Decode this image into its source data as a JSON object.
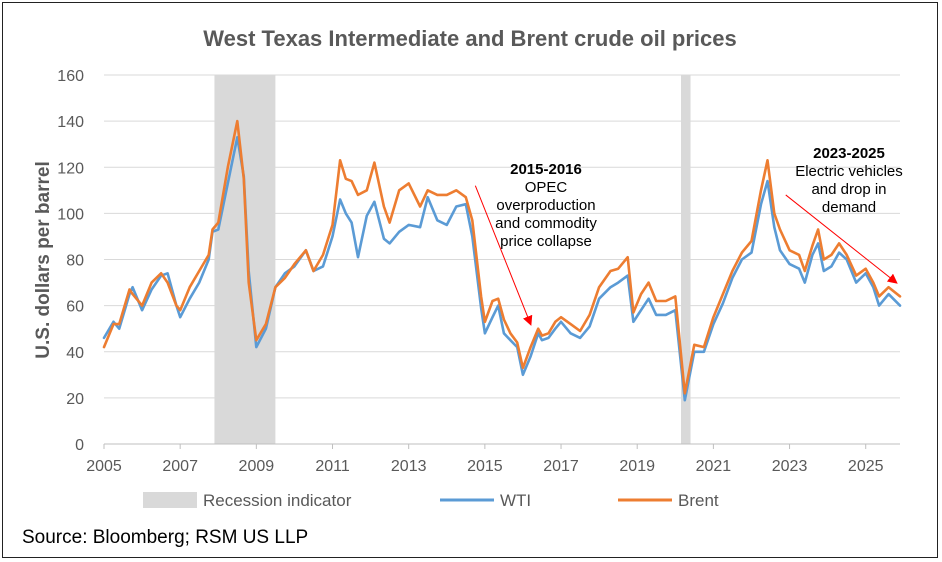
{
  "chart_data": {
    "type": "line",
    "title": "West Texas Intermediate and Brent crude oil prices",
    "ylabel": "U.S. dollars per barrel",
    "xlabel": "",
    "ylim": [
      0,
      160
    ],
    "yticks": [
      "0",
      "20",
      "40",
      "60",
      "80",
      "100",
      "120",
      "140",
      "160"
    ],
    "xlim": [
      2005,
      2025.9
    ],
    "xticks": [
      "2005",
      "2007",
      "2009",
      "2011",
      "2013",
      "2015",
      "2017",
      "2019",
      "2021",
      "2023",
      "2025"
    ],
    "grid": "horizontal",
    "recessions": [
      [
        2007.9,
        2009.5
      ],
      [
        2020.15,
        2020.4
      ]
    ],
    "legend": {
      "position": "bottom",
      "entries": [
        {
          "label": "Recession indicator",
          "color": "#d9d9d9"
        },
        {
          "label": "WTI",
          "color": "#5b9bd5"
        },
        {
          "label": "Brent",
          "color": "#ed7d31"
        }
      ]
    },
    "series": [
      {
        "name": "WTI",
        "color": "#5b9bd5",
        "points": [
          [
            2005.0,
            46
          ],
          [
            2005.25,
            53
          ],
          [
            2005.4,
            50
          ],
          [
            2005.67,
            65
          ],
          [
            2005.75,
            68
          ],
          [
            2006.0,
            58
          ],
          [
            2006.25,
            67
          ],
          [
            2006.5,
            73
          ],
          [
            2006.67,
            74
          ],
          [
            2006.9,
            60
          ],
          [
            2007.0,
            55
          ],
          [
            2007.25,
            63
          ],
          [
            2007.5,
            70
          ],
          [
            2007.75,
            80
          ],
          [
            2007.85,
            92
          ],
          [
            2008.0,
            93
          ],
          [
            2008.25,
            113
          ],
          [
            2008.5,
            133
          ],
          [
            2008.67,
            116
          ],
          [
            2008.8,
            75
          ],
          [
            2009.0,
            42
          ],
          [
            2009.25,
            50
          ],
          [
            2009.5,
            68
          ],
          [
            2009.75,
            74
          ],
          [
            2010.0,
            77
          ],
          [
            2010.3,
            84
          ],
          [
            2010.5,
            75
          ],
          [
            2010.75,
            77
          ],
          [
            2011.0,
            90
          ],
          [
            2011.2,
            106
          ],
          [
            2011.35,
            100
          ],
          [
            2011.5,
            96
          ],
          [
            2011.67,
            81
          ],
          [
            2011.9,
            99
          ],
          [
            2012.1,
            105
          ],
          [
            2012.35,
            89
          ],
          [
            2012.5,
            87
          ],
          [
            2012.75,
            92
          ],
          [
            2013.0,
            95
          ],
          [
            2013.3,
            94
          ],
          [
            2013.5,
            107
          ],
          [
            2013.75,
            97
          ],
          [
            2014.0,
            95
          ],
          [
            2014.25,
            103
          ],
          [
            2014.5,
            104
          ],
          [
            2014.67,
            90
          ],
          [
            2014.9,
            59
          ],
          [
            2015.0,
            48
          ],
          [
            2015.2,
            55
          ],
          [
            2015.35,
            60
          ],
          [
            2015.5,
            48
          ],
          [
            2015.67,
            45
          ],
          [
            2015.85,
            42
          ],
          [
            2016.0,
            30
          ],
          [
            2016.2,
            38
          ],
          [
            2016.4,
            48
          ],
          [
            2016.5,
            45
          ],
          [
            2016.67,
            46
          ],
          [
            2016.85,
            50
          ],
          [
            2017.0,
            53
          ],
          [
            2017.25,
            48
          ],
          [
            2017.5,
            46
          ],
          [
            2017.75,
            51
          ],
          [
            2018.0,
            63
          ],
          [
            2018.3,
            68
          ],
          [
            2018.5,
            70
          ],
          [
            2018.75,
            73
          ],
          [
            2018.9,
            53
          ],
          [
            2019.1,
            58
          ],
          [
            2019.3,
            63
          ],
          [
            2019.5,
            56
          ],
          [
            2019.75,
            56
          ],
          [
            2020.0,
            58
          ],
          [
            2020.25,
            19
          ],
          [
            2020.5,
            40
          ],
          [
            2020.75,
            40
          ],
          [
            2021.0,
            52
          ],
          [
            2021.25,
            61
          ],
          [
            2021.5,
            72
          ],
          [
            2021.75,
            80
          ],
          [
            2022.0,
            83
          ],
          [
            2022.25,
            104
          ],
          [
            2022.42,
            114
          ],
          [
            2022.6,
            94
          ],
          [
            2022.75,
            84
          ],
          [
            2023.0,
            78
          ],
          [
            2023.25,
            76
          ],
          [
            2023.4,
            70
          ],
          [
            2023.6,
            82
          ],
          [
            2023.75,
            87
          ],
          [
            2023.9,
            75
          ],
          [
            2024.1,
            77
          ],
          [
            2024.3,
            83
          ],
          [
            2024.5,
            80
          ],
          [
            2024.75,
            70
          ],
          [
            2025.0,
            74
          ],
          [
            2025.2,
            68
          ],
          [
            2025.35,
            60
          ],
          [
            2025.6,
            65
          ],
          [
            2025.9,
            60
          ]
        ]
      },
      {
        "name": "Brent",
        "color": "#ed7d31",
        "points": [
          [
            2005.0,
            42
          ],
          [
            2005.25,
            52
          ],
          [
            2005.4,
            52
          ],
          [
            2005.67,
            67
          ],
          [
            2005.75,
            65
          ],
          [
            2006.0,
            60
          ],
          [
            2006.25,
            70
          ],
          [
            2006.5,
            74
          ],
          [
            2006.67,
            70
          ],
          [
            2006.9,
            60
          ],
          [
            2007.0,
            58
          ],
          [
            2007.25,
            68
          ],
          [
            2007.5,
            75
          ],
          [
            2007.75,
            82
          ],
          [
            2007.85,
            93
          ],
          [
            2008.0,
            96
          ],
          [
            2008.25,
            120
          ],
          [
            2008.5,
            140
          ],
          [
            2008.67,
            115
          ],
          [
            2008.8,
            70
          ],
          [
            2009.0,
            45
          ],
          [
            2009.25,
            52
          ],
          [
            2009.5,
            68
          ],
          [
            2009.75,
            72
          ],
          [
            2010.0,
            78
          ],
          [
            2010.3,
            84
          ],
          [
            2010.5,
            75
          ],
          [
            2010.75,
            82
          ],
          [
            2011.0,
            95
          ],
          [
            2011.2,
            123
          ],
          [
            2011.35,
            115
          ],
          [
            2011.5,
            114
          ],
          [
            2011.67,
            108
          ],
          [
            2011.9,
            110
          ],
          [
            2012.1,
            122
          ],
          [
            2012.35,
            103
          ],
          [
            2012.5,
            96
          ],
          [
            2012.75,
            110
          ],
          [
            2013.0,
            113
          ],
          [
            2013.3,
            103
          ],
          [
            2013.5,
            110
          ],
          [
            2013.75,
            108
          ],
          [
            2014.0,
            108
          ],
          [
            2014.25,
            110
          ],
          [
            2014.5,
            107
          ],
          [
            2014.67,
            97
          ],
          [
            2014.9,
            64
          ],
          [
            2015.0,
            53
          ],
          [
            2015.2,
            62
          ],
          [
            2015.35,
            63
          ],
          [
            2015.5,
            54
          ],
          [
            2015.67,
            48
          ],
          [
            2015.85,
            44
          ],
          [
            2016.0,
            33
          ],
          [
            2016.2,
            42
          ],
          [
            2016.4,
            50
          ],
          [
            2016.5,
            47
          ],
          [
            2016.67,
            48
          ],
          [
            2016.85,
            53
          ],
          [
            2017.0,
            55
          ],
          [
            2017.25,
            52
          ],
          [
            2017.5,
            49
          ],
          [
            2017.75,
            56
          ],
          [
            2018.0,
            68
          ],
          [
            2018.3,
            75
          ],
          [
            2018.5,
            76
          ],
          [
            2018.75,
            81
          ],
          [
            2018.9,
            57
          ],
          [
            2019.1,
            65
          ],
          [
            2019.3,
            70
          ],
          [
            2019.5,
            62
          ],
          [
            2019.75,
            62
          ],
          [
            2020.0,
            64
          ],
          [
            2020.25,
            22
          ],
          [
            2020.5,
            43
          ],
          [
            2020.75,
            42
          ],
          [
            2021.0,
            55
          ],
          [
            2021.25,
            65
          ],
          [
            2021.5,
            75
          ],
          [
            2021.75,
            83
          ],
          [
            2022.0,
            88
          ],
          [
            2022.25,
            110
          ],
          [
            2022.42,
            123
          ],
          [
            2022.6,
            100
          ],
          [
            2022.75,
            93
          ],
          [
            2023.0,
            84
          ],
          [
            2023.25,
            82
          ],
          [
            2023.4,
            75
          ],
          [
            2023.6,
            86
          ],
          [
            2023.75,
            93
          ],
          [
            2023.9,
            80
          ],
          [
            2024.1,
            82
          ],
          [
            2024.3,
            87
          ],
          [
            2024.5,
            82
          ],
          [
            2024.75,
            73
          ],
          [
            2025.0,
            76
          ],
          [
            2025.2,
            70
          ],
          [
            2025.35,
            64
          ],
          [
            2025.6,
            68
          ],
          [
            2025.9,
            64
          ]
        ]
      }
    ],
    "annotations": [
      {
        "title": "2015-2016",
        "lines": [
          "OPEC",
          "overproduction",
          "and commodity",
          "price collapse"
        ],
        "arrow_from": [
          2014.75,
          112
        ],
        "arrow_to": [
          2016.2,
          52
        ]
      },
      {
        "title": "2023-2025",
        "lines": [
          "Electric vehicles",
          "and drop in",
          "demand"
        ],
        "arrow_from": [
          2022.9,
          108
        ],
        "arrow_to": [
          2025.8,
          70
        ]
      }
    ]
  },
  "source": "Source: Bloomberg; RSM US LLP"
}
